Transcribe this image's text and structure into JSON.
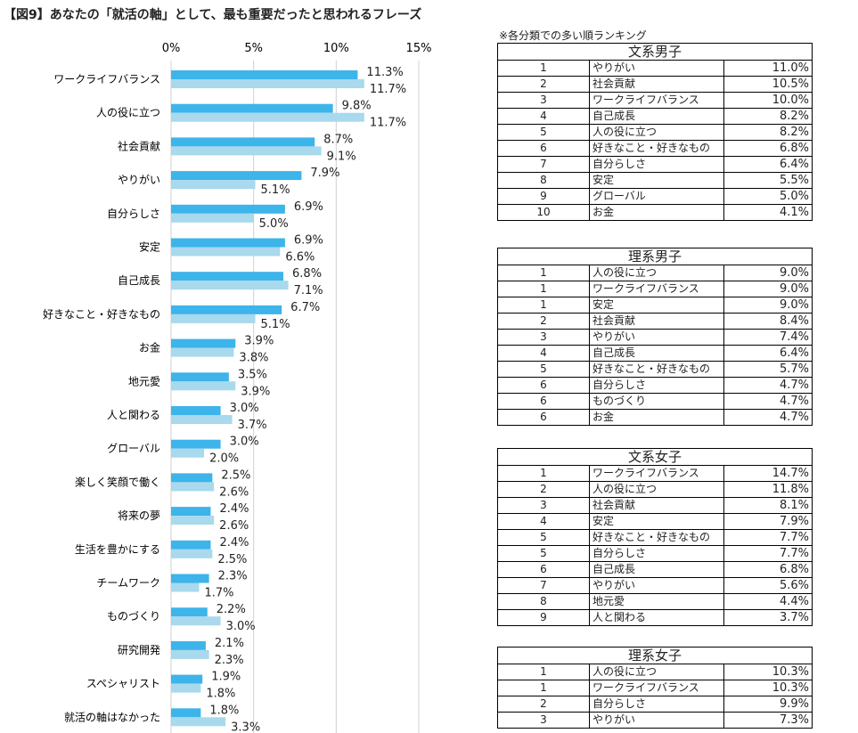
{
  "title": "【図9】あなたの「就活の軸」として、最も重要だったと思われるフレーズ",
  "note": "※各分類での多い順ランキング",
  "colors": {
    "series1": "#3db4ea",
    "series2": "#a8d9ec",
    "grid": "#d0d0d0"
  },
  "chart_data": {
    "type": "bar",
    "orientation": "horizontal",
    "title": "【図9】あなたの「就活の軸」として、最も重要だったと思われるフレーズ",
    "xlim": [
      0,
      15
    ],
    "xticks": [
      "0%",
      "5%",
      "10%",
      "15%"
    ],
    "grid": true,
    "categories": [
      "ワークライフバランス",
      "人の役に立つ",
      "社会貢献",
      "やりがい",
      "自分らしさ",
      "安定",
      "自己成長",
      "好きなこと・好きなもの",
      "お金",
      "地元愛",
      "人と関わる",
      "グローバル",
      "楽しく笑顔で働く",
      "将来の夢",
      "生活を豊かにする",
      "チームワーク",
      "ものづくり",
      "研究開発",
      "スペシャリスト",
      "就活の軸はなかった"
    ],
    "series": [
      {
        "name": "series1",
        "values": [
          11.3,
          9.8,
          8.7,
          7.9,
          6.9,
          6.9,
          6.8,
          6.7,
          3.9,
          3.5,
          3.0,
          3.0,
          2.5,
          2.4,
          2.4,
          2.3,
          2.2,
          2.1,
          1.9,
          1.8
        ]
      },
      {
        "name": "series2",
        "values": [
          11.7,
          11.7,
          9.1,
          5.1,
          5.0,
          6.6,
          7.1,
          5.1,
          3.8,
          3.9,
          3.7,
          2.0,
          2.6,
          2.6,
          2.5,
          1.7,
          3.0,
          2.3,
          1.8,
          3.3
        ]
      }
    ]
  },
  "tables": [
    {
      "title": "文系男子",
      "rows": [
        [
          "1",
          "やりがい",
          "11.0%"
        ],
        [
          "2",
          "社会貢献",
          "10.5%"
        ],
        [
          "3",
          "ワークライフバランス",
          "10.0%"
        ],
        [
          "4",
          "自己成長",
          "8.2%"
        ],
        [
          "5",
          "人の役に立つ",
          "8.2%"
        ],
        [
          "6",
          "好きなこと・好きなもの",
          "6.8%"
        ],
        [
          "7",
          "自分らしさ",
          "6.4%"
        ],
        [
          "8",
          "安定",
          "5.5%"
        ],
        [
          "9",
          "グローバル",
          "5.0%"
        ],
        [
          "10",
          "お金",
          "4.1%"
        ]
      ]
    },
    {
      "title": "理系男子",
      "rows": [
        [
          "1",
          "人の役に立つ",
          "9.0%"
        ],
        [
          "1",
          "ワークライフバランス",
          "9.0%"
        ],
        [
          "1",
          "安定",
          "9.0%"
        ],
        [
          "2",
          "社会貢献",
          "8.4%"
        ],
        [
          "3",
          "やりがい",
          "7.4%"
        ],
        [
          "4",
          "自己成長",
          "6.4%"
        ],
        [
          "5",
          "好きなこと・好きなもの",
          "5.7%"
        ],
        [
          "6",
          "自分らしさ",
          "4.7%"
        ],
        [
          "6",
          "ものづくり",
          "4.7%"
        ],
        [
          "6",
          "お金",
          "4.7%"
        ]
      ]
    },
    {
      "title": "文系女子",
      "rows": [
        [
          "1",
          "ワークライフバランス",
          "14.7%"
        ],
        [
          "2",
          "人の役に立つ",
          "11.8%"
        ],
        [
          "3",
          "社会貢献",
          "8.1%"
        ],
        [
          "4",
          "安定",
          "7.9%"
        ],
        [
          "5",
          "好きなこと・好きなもの",
          "7.7%"
        ],
        [
          "5",
          "自分らしさ",
          "7.7%"
        ],
        [
          "6",
          "自己成長",
          "6.8%"
        ],
        [
          "7",
          "やりがい",
          "5.6%"
        ],
        [
          "8",
          "地元愛",
          "4.4%"
        ],
        [
          "9",
          "人と関わる",
          "3.7%"
        ]
      ]
    },
    {
      "title": "理系女子",
      "rows": [
        [
          "1",
          "人の役に立つ",
          "10.3%"
        ],
        [
          "1",
          "ワークライフバランス",
          "10.3%"
        ],
        [
          "2",
          "自分らしさ",
          "9.9%"
        ],
        [
          "3",
          "やりがい",
          "7.3%"
        ]
      ]
    }
  ]
}
